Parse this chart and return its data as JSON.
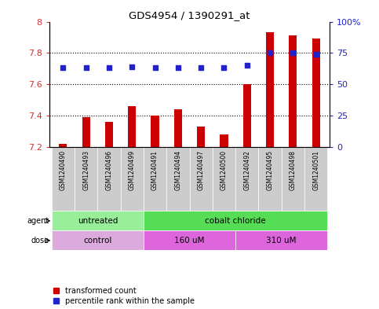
{
  "title": "GDS4954 / 1390291_at",
  "samples": [
    "GSM1240490",
    "GSM1240493",
    "GSM1240496",
    "GSM1240499",
    "GSM1240491",
    "GSM1240494",
    "GSM1240497",
    "GSM1240500",
    "GSM1240492",
    "GSM1240495",
    "GSM1240498",
    "GSM1240501"
  ],
  "transformed_count": [
    7.22,
    7.39,
    7.36,
    7.46,
    7.4,
    7.44,
    7.33,
    7.28,
    7.6,
    7.93,
    7.91,
    7.89
  ],
  "percentile_rank": [
    63,
    63,
    63,
    64,
    63,
    63,
    63,
    63,
    65,
    75,
    75,
    74
  ],
  "ylim_left": [
    7.2,
    8.0
  ],
  "ylim_right": [
    0,
    100
  ],
  "yticks_left": [
    7.2,
    7.4,
    7.6,
    7.8,
    8.0
  ],
  "ytick_labels_left": [
    "7.2",
    "7.4",
    "7.6",
    "7.8",
    "8"
  ],
  "yticks_right": [
    0,
    25,
    50,
    75,
    100
  ],
  "ytick_labels_right": [
    "0",
    "25",
    "50",
    "75",
    "100%"
  ],
  "bar_color": "#cc0000",
  "dot_color": "#2222cc",
  "agent_labels": [
    "untreated",
    "cobalt chloride"
  ],
  "agent_color_untreated": "#99ee99",
  "agent_color_cobalt": "#55dd55",
  "dose_labels": [
    "control",
    "160 uM",
    "310 uM"
  ],
  "dose_color_control": "#ddaadd",
  "dose_color_160": "#dd66dd",
  "dose_color_310": "#dd66dd",
  "grid_dotted_levels": [
    7.4,
    7.6,
    7.8
  ],
  "bar_width": 0.35,
  "legend_items": [
    "transformed count",
    "percentile rank within the sample"
  ],
  "legend_colors": [
    "#cc0000",
    "#2222cc"
  ],
  "background_color": "#ffffff",
  "tick_label_color_left": "#cc3333",
  "tick_label_color_right": "#2222cc",
  "label_bg_color": "#cccccc",
  "agent_arrow_color": "#555555",
  "dose_span_dividers": [
    4,
    8
  ]
}
